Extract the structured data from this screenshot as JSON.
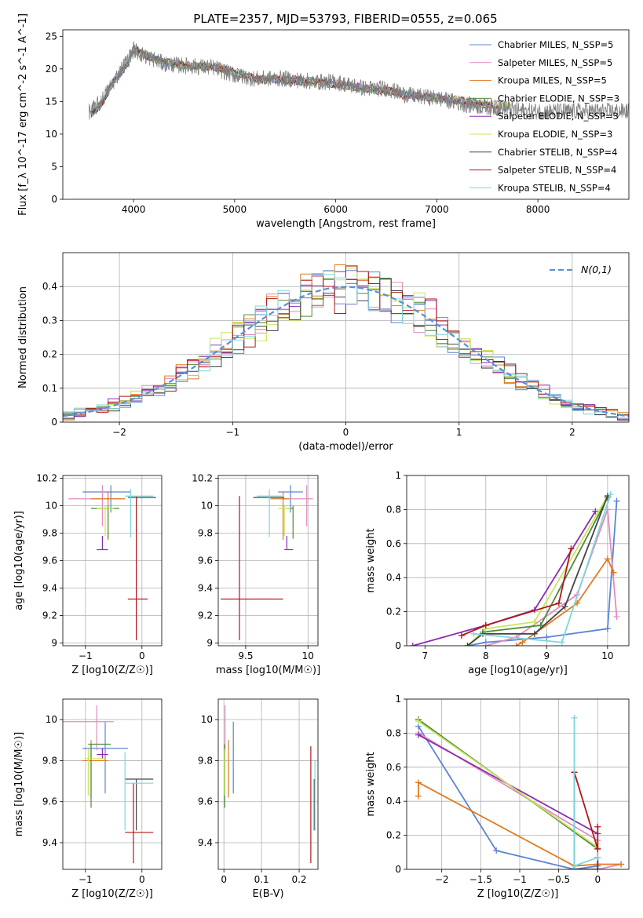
{
  "figure": {
    "title": "PLATE=2357, MJD=53793, FIBERID=0555, z=0.065"
  },
  "series_colors": {
    "Chabrier MILES": "#5b84d6",
    "Salpeter MILES": "#e38bc0",
    "Kroupa MILES": "#e07b20",
    "Chabrier ELODIE": "#4e8a3c",
    "Salpeter ELODIE": "#8e2cb0",
    "Kroupa ELODIE": "#c7e65a",
    "Chabrier STELIB": "#444444",
    "Salpeter STELIB": "#b01818",
    "Kroupa STELIB": "#7dd6dc"
  },
  "chart_data": [
    {
      "id": "spectrum",
      "type": "line",
      "xlabel": "wavelength [Angstrom, rest frame]",
      "ylabel": "Flux [f_λ 10^-17 erg cm^-2 s^-1 A^-1]",
      "xlim": [
        3300,
        8900
      ],
      "ylim": [
        0,
        26
      ],
      "xticks": [
        4000,
        5000,
        6000,
        7000,
        8000
      ],
      "yticks": [
        0,
        5,
        10,
        15,
        20,
        25
      ],
      "grid": false,
      "legend_position": "top-right",
      "legend": [
        "Chabrier MILES, N_SSP=5",
        "Salpeter MILES, N_SSP=5",
        "Kroupa MILES, N_SSP=5",
        "Chabrier ELODIE, N_SSP=3",
        "Salpeter ELODIE, N_SSP=3",
        "Kroupa ELODIE, N_SSP=3",
        "Chabrier STELIB, N_SSP=4",
        "Salpeter STELIB, N_SSP=4",
        "Kroupa STELIB, N_SSP=4"
      ],
      "data_series": {
        "x": [
          3580,
          3700,
          3800,
          3900,
          3950,
          4000,
          4100,
          4200,
          4300,
          4500,
          4800,
          5000,
          5200,
          5500,
          5800,
          6000,
          6300,
          6500,
          6700,
          7000,
          7300,
          7600,
          7900
        ],
        "y": [
          13.5,
          15.5,
          18.0,
          20.5,
          21.5,
          23.0,
          22.0,
          21.5,
          20.8,
          20.5,
          20.2,
          19.0,
          18.5,
          18.5,
          18.0,
          18.0,
          17.0,
          17.0,
          16.0,
          15.5,
          14.5,
          14.0,
          13.5
        ]
      },
      "model_series": {
        "x": [
          3580,
          3700,
          3800,
          3900,
          3950,
          4000,
          4100,
          4200,
          4300,
          4500,
          4800,
          5000,
          5200,
          5500,
          5800,
          6000,
          6300,
          6500,
          6700,
          7000,
          7300,
          7500
        ],
        "y": [
          13.0,
          15.0,
          18.0,
          20.0,
          21.0,
          23.0,
          22.3,
          21.5,
          21.0,
          20.5,
          20.3,
          19.5,
          18.5,
          18.3,
          18.0,
          17.7,
          17.0,
          16.6,
          16.0,
          15.5,
          15.0,
          14.5
        ]
      }
    },
    {
      "id": "residuals",
      "type": "histogram",
      "xlabel": "(data-model)/error",
      "ylabel": "Normed distribution",
      "xlim": [
        -2.5,
        2.5
      ],
      "ylim": [
        0,
        0.5
      ],
      "xticks": [
        -2,
        -1,
        0,
        1,
        2
      ],
      "yticks": [
        0.0,
        0.1,
        0.2,
        0.3,
        0.4
      ],
      "grid": true,
      "legend_position": "top-right",
      "legend": [
        "N(0,1)"
      ],
      "gaussian": {
        "mean": 0,
        "sigma": 1
      }
    },
    {
      "id": "age-vs-Z",
      "type": "scatter",
      "xlabel": "Z [log10(Z/Z☉)]",
      "ylabel": "age  [log10(age/yr)]",
      "xlim": [
        -1.4,
        0.35
      ],
      "ylim": [
        8.98,
        10.22
      ],
      "xticks": [
        -1,
        0
      ],
      "yticks": [
        9.0,
        9.2,
        9.4,
        9.6,
        9.8,
        10.0,
        10.2
      ],
      "grid": true,
      "points": [
        {
          "series": "Chabrier MILES",
          "x": -0.55,
          "y": 10.1,
          "xerr": [
            0.5,
            0.35
          ],
          "yerr": [
            0.15,
            0.05
          ]
        },
        {
          "series": "Salpeter MILES",
          "x": -0.7,
          "y": 10.05,
          "xerr": [
            0.6,
            0.4
          ],
          "yerr": [
            0.2,
            0.1
          ]
        },
        {
          "series": "Kroupa MILES",
          "x": -0.6,
          "y": 10.05,
          "xerr": [
            0.3,
            0.3
          ],
          "yerr": [
            0.3,
            0.05
          ]
        },
        {
          "series": "Chabrier ELODIE",
          "x": -0.6,
          "y": 9.98,
          "xerr": [
            0.3,
            0.2
          ],
          "yerr": [
            0.22,
            0.02
          ]
        },
        {
          "series": "Salpeter ELODIE",
          "x": -0.7,
          "y": 9.68,
          "xerr": [
            0.1,
            0.1
          ],
          "yerr": [
            0.0,
            0.1
          ]
        },
        {
          "series": "Kroupa ELODIE",
          "x": -0.65,
          "y": 9.98,
          "xerr": [
            0.15,
            0.15
          ],
          "yerr": [
            0.2,
            0.02
          ]
        },
        {
          "series": "Chabrier STELIB",
          "x": -0.15,
          "y": 10.06,
          "xerr": [
            0.1,
            0.4
          ],
          "yerr": [
            0.0,
            0.0
          ]
        },
        {
          "series": "Salpeter STELIB",
          "x": -0.1,
          "y": 9.32,
          "xerr": [
            0.15,
            0.2
          ],
          "yerr": [
            0.3,
            0.75
          ]
        },
        {
          "series": "Kroupa STELIB",
          "x": -0.2,
          "y": 10.07,
          "xerr": [
            0.1,
            0.4
          ],
          "yerr": [
            0.3,
            0.05
          ]
        }
      ]
    },
    {
      "id": "age-vs-mass",
      "type": "scatter",
      "xlabel": "mass [log10(M/M☉)]",
      "ylabel": "",
      "xlim": [
        9.28,
        10.08
      ],
      "ylim": [
        8.98,
        10.22
      ],
      "xticks": [
        9.5,
        10.0
      ],
      "yticks": [
        9.0,
        9.2,
        9.4,
        9.6,
        9.8,
        10.0,
        10.2
      ],
      "grid": true,
      "points": [
        {
          "series": "Chabrier MILES",
          "x": 9.86,
          "y": 10.1,
          "xerr": [
            0.1,
            0.1
          ],
          "yerr": [
            0.15,
            0.05
          ]
        },
        {
          "series": "Salpeter MILES",
          "x": 9.99,
          "y": 10.05,
          "xerr": [
            0.2,
            0.05
          ],
          "yerr": [
            0.2,
            0.1
          ]
        },
        {
          "series": "Kroupa MILES",
          "x": 9.8,
          "y": 10.05,
          "xerr": [
            0.1,
            0.05
          ],
          "yerr": [
            0.3,
            0.05
          ]
        },
        {
          "series": "Chabrier ELODIE",
          "x": 9.88,
          "y": 9.98,
          "xerr": [
            0.05,
            0.0
          ],
          "yerr": [
            0.22,
            0.02
          ]
        },
        {
          "series": "Salpeter ELODIE",
          "x": 9.83,
          "y": 9.68,
          "xerr": [
            0.02,
            0.05
          ],
          "yerr": [
            0.0,
            0.1
          ]
        },
        {
          "series": "Kroupa ELODIE",
          "x": 9.81,
          "y": 9.98,
          "xerr": [
            0.05,
            0.05
          ],
          "yerr": [
            0.2,
            0.02
          ]
        },
        {
          "series": "Chabrier STELIB",
          "x": 9.71,
          "y": 10.06,
          "xerr": [
            0.15,
            0.1
          ],
          "yerr": [
            0.0,
            0.0
          ]
        },
        {
          "series": "Salpeter STELIB",
          "x": 9.45,
          "y": 9.32,
          "xerr": [
            0.15,
            0.35
          ],
          "yerr": [
            0.3,
            0.75
          ]
        },
        {
          "series": "Kroupa STELIB",
          "x": 9.69,
          "y": 10.07,
          "xerr": [
            0.1,
            0.1
          ],
          "yerr": [
            0.3,
            0.05
          ]
        }
      ]
    },
    {
      "id": "weight-vs-age",
      "type": "line",
      "xlabel": "age  [log10(age/yr)]",
      "ylabel": "mass weight",
      "xlim": [
        6.7,
        10.35
      ],
      "ylim": [
        0,
        1.0
      ],
      "xticks": [
        7,
        8,
        9,
        10
      ],
      "yticks": [
        0.0,
        0.2,
        0.4,
        0.6,
        0.8,
        1.0
      ],
      "grid": true,
      "series": [
        {
          "name": "Chabrier MILES",
          "x": [
            7.7,
            8.0,
            9.0,
            10.0,
            10.15
          ],
          "y": [
            0.0,
            0.02,
            0.05,
            0.1,
            0.85
          ]
        },
        {
          "name": "Salpeter MILES",
          "x": [
            8.0,
            8.5,
            9.5,
            10.0,
            10.15
          ],
          "y": [
            0.0,
            0.05,
            0.3,
            0.8,
            0.17
          ]
        },
        {
          "name": "Kroupa MILES",
          "x": [
            8.5,
            8.6,
            9.5,
            10.0,
            10.1
          ],
          "y": [
            0.0,
            0.02,
            0.25,
            0.51,
            0.43
          ]
        },
        {
          "name": "Chabrier ELODIE",
          "x": [
            7.7,
            7.95,
            8.9,
            10.0
          ],
          "y": [
            0.0,
            0.08,
            0.12,
            0.87
          ]
        },
        {
          "name": "Salpeter ELODIE",
          "x": [
            6.8,
            8.0,
            8.8,
            9.8
          ],
          "y": [
            0.0,
            0.12,
            0.21,
            0.79
          ]
        },
        {
          "name": "Kroupa ELODIE",
          "x": [
            7.7,
            8.0,
            8.8,
            10.0
          ],
          "y": [
            0.0,
            0.1,
            0.14,
            0.88
          ]
        },
        {
          "name": "Chabrier STELIB",
          "x": [
            7.7,
            7.95,
            8.8,
            9.3,
            10.0
          ],
          "y": [
            0.0,
            0.07,
            0.07,
            0.23,
            0.88
          ]
        },
        {
          "name": "Salpeter STELIB",
          "x": [
            7.6,
            8.0,
            9.2,
            9.4
          ],
          "y": [
            0.06,
            0.12,
            0.25,
            0.57
          ]
        },
        {
          "name": "Kroupa STELIB",
          "x": [
            7.8,
            9.25,
            10.05
          ],
          "y": [
            0.07,
            0.02,
            0.89
          ]
        }
      ]
    },
    {
      "id": "mass-vs-Z",
      "type": "scatter",
      "xlabel": "Z [log10(Z/Z☉)]",
      "ylabel": "mass [log10(M/M☉)]",
      "xlim": [
        -1.4,
        0.35
      ],
      "ylim": [
        9.27,
        10.1
      ],
      "xticks": [
        -1,
        0
      ],
      "yticks": [
        9.4,
        9.6,
        9.8,
        10.0
      ],
      "grid": true,
      "points": [
        {
          "series": "Chabrier MILES",
          "x": -0.65,
          "y": 9.86,
          "xerr": [
            0.4,
            0.4
          ],
          "yerr": [
            0.22,
            0.13
          ]
        },
        {
          "series": "Salpeter MILES",
          "x": -0.8,
          "y": 9.99,
          "xerr": [
            0.6,
            0.3
          ],
          "yerr": [
            0.14,
            0.08
          ]
        },
        {
          "series": "Kroupa MILES",
          "x": -0.9,
          "y": 9.8,
          "xerr": [
            0.15,
            0.3
          ],
          "yerr": [
            0.18,
            0.1
          ]
        },
        {
          "series": "Chabrier ELODIE",
          "x": -0.9,
          "y": 9.88,
          "xerr": [
            0.05,
            0.35
          ],
          "yerr": [
            0.31,
            0.0
          ]
        },
        {
          "series": "Salpeter ELODIE",
          "x": -0.7,
          "y": 9.83,
          "xerr": [
            0.1,
            0.1
          ],
          "yerr": [
            0.02,
            0.03
          ]
        },
        {
          "series": "Kroupa ELODIE",
          "x": -0.95,
          "y": 9.81,
          "xerr": [
            0.05,
            0.3
          ],
          "yerr": [
            0.18,
            0.05
          ]
        },
        {
          "series": "Chabrier STELIB",
          "x": -0.1,
          "y": 9.71,
          "xerr": [
            0.2,
            0.3
          ],
          "yerr": [
            0.25,
            0.0
          ]
        },
        {
          "series": "Salpeter STELIB",
          "x": -0.15,
          "y": 9.45,
          "xerr": [
            0.15,
            0.35
          ],
          "yerr": [
            0.15,
            0.24
          ]
        },
        {
          "series": "Kroupa STELIB",
          "x": -0.3,
          "y": 9.69,
          "xerr": [
            0.0,
            0.5
          ],
          "yerr": [
            0.23,
            0.15
          ]
        }
      ]
    },
    {
      "id": "mass-vs-EBV",
      "type": "scatter",
      "xlabel": "E(B-V)",
      "ylabel": "",
      "xlim": [
        -0.015,
        0.25
      ],
      "ylim": [
        9.27,
        10.1
      ],
      "xticks": [
        0.0,
        0.1,
        0.2
      ],
      "yticks": [
        9.4,
        9.6,
        9.8,
        10.0
      ],
      "grid": true,
      "points": [
        {
          "series": "Chabrier MILES",
          "x": 0.025,
          "y": 9.86,
          "xerr": [
            0.0,
            0.0
          ],
          "yerr": [
            0.22,
            0.13
          ]
        },
        {
          "series": "Salpeter MILES",
          "x": 0.003,
          "y": 9.99,
          "xerr": [
            0.0,
            0.0
          ],
          "yerr": [
            0.14,
            0.08
          ]
        },
        {
          "series": "Kroupa MILES",
          "x": 0.012,
          "y": 9.8,
          "xerr": [
            0.0,
            0.0
          ],
          "yerr": [
            0.18,
            0.1
          ]
        },
        {
          "series": "Chabrier ELODIE",
          "x": 0.002,
          "y": 9.88,
          "xerr": [
            0.0,
            0.0
          ],
          "yerr": [
            0.31,
            0.0
          ]
        },
        {
          "series": "Salpeter ELODIE",
          "x": 0.001,
          "y": 9.83,
          "xerr": [
            0.0,
            0.0
          ],
          "yerr": [
            0.02,
            0.03
          ]
        },
        {
          "series": "Kroupa ELODIE",
          "x": 0.001,
          "y": 9.81,
          "xerr": [
            0.0,
            0.0
          ],
          "yerr": [
            0.18,
            0.05
          ]
        },
        {
          "series": "Chabrier STELIB",
          "x": 0.24,
          "y": 9.71,
          "xerr": [
            0.0,
            0.0
          ],
          "yerr": [
            0.25,
            0.0
          ]
        },
        {
          "series": "Salpeter STELIB",
          "x": 0.231,
          "y": 9.45,
          "xerr": [
            0.0,
            0.0
          ],
          "yerr": [
            0.15,
            0.42
          ]
        },
        {
          "series": "Kroupa STELIB",
          "x": 0.242,
          "y": 9.69,
          "xerr": [
            0.0,
            0.0
          ],
          "yerr": [
            0.23,
            0.11
          ]
        }
      ]
    },
    {
      "id": "weight-vs-Z",
      "type": "line",
      "xlabel": "Z [log10(Z/Z☉)]",
      "ylabel": "mass weight",
      "xlim": [
        -2.45,
        0.4
      ],
      "ylim": [
        0,
        1.0
      ],
      "xticks": [
        -2.0,
        -1.5,
        -1.0,
        -0.5,
        0.0
      ],
      "yticks": [
        0.0,
        0.2,
        0.4,
        0.6,
        0.8,
        1.0
      ],
      "grid": true,
      "series": [
        {
          "name": "Chabrier MILES",
          "x": [
            -2.3,
            -1.3,
            -0.3,
            0.0,
            0.0
          ],
          "y": [
            0.84,
            0.11,
            0.0,
            0.02,
            0.03
          ]
        },
        {
          "name": "Salpeter MILES",
          "x": [
            -2.3,
            0.0,
            0.0,
            0.3
          ],
          "y": [
            0.8,
            0.17,
            0.0,
            0.03
          ]
        },
        {
          "name": "Kroupa MILES",
          "x": [
            -2.3,
            -2.3,
            -0.3,
            0.0,
            0.3
          ],
          "y": [
            0.43,
            0.51,
            0.02,
            0.03,
            0.03
          ]
        },
        {
          "name": "Chabrier ELODIE",
          "x": [
            -2.3,
            0.0
          ],
          "y": [
            0.88,
            0.12
          ]
        },
        {
          "name": "Salpeter ELODIE",
          "x": [
            -2.3,
            0.0
          ],
          "y": [
            0.79,
            0.21
          ]
        },
        {
          "name": "Kroupa ELODIE",
          "x": [
            -2.3,
            0.0
          ],
          "y": [
            0.87,
            0.13
          ]
        },
        {
          "name": "Chabrier STELIB",
          "x": [
            -0.3,
            -0.3,
            0.0,
            0.0
          ],
          "y": [
            0.57,
            0.0,
            0.0,
            0.07
          ]
        },
        {
          "name": "Salpeter STELIB",
          "x": [
            -0.3,
            0.0,
            0.0
          ],
          "y": [
            0.57,
            0.12,
            0.25
          ]
        },
        {
          "name": "Kroupa STELIB",
          "x": [
            -0.3,
            -0.3,
            0.0
          ],
          "y": [
            0.89,
            0.02,
            0.07
          ]
        }
      ]
    }
  ]
}
